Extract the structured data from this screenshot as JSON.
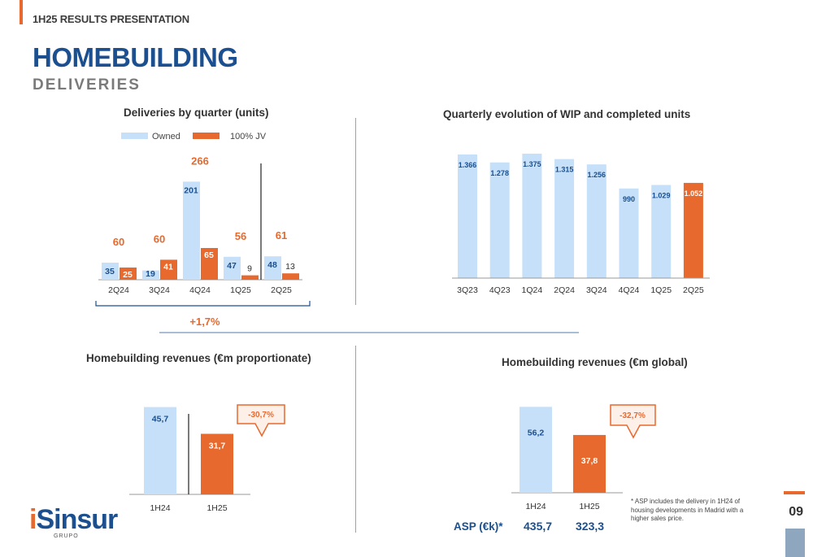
{
  "header": {
    "section_label": "1H25 RESULTS PRESENTATION",
    "title": "HOMEBUILDING",
    "subtitle": "DELIVERIES"
  },
  "colors": {
    "owned": "#c5e0f8",
    "jv": "#e8692e",
    "navy": "#1b4f8f",
    "accent": "#e8692e"
  },
  "chart_data": [
    {
      "type": "bar",
      "title": "Deliveries by quarter (units)",
      "categories": [
        "2Q24",
        "3Q24",
        "4Q24",
        "1Q25",
        "2Q25"
      ],
      "series": [
        {
          "name": "Owned",
          "values": [
            35,
            19,
            201,
            47,
            48
          ]
        },
        {
          "name": "100% JV",
          "values": [
            25,
            41,
            65,
            9,
            13
          ]
        }
      ],
      "totals": [
        60,
        60,
        266,
        56,
        61
      ],
      "legend": "top",
      "annotation": "+1,7%"
    },
    {
      "type": "bar",
      "title": "Quarterly evolution of WIP and completed units",
      "categories": [
        "3Q23",
        "4Q23",
        "1Q24",
        "2Q24",
        "3Q24",
        "4Q24",
        "1Q25",
        "2Q25"
      ],
      "values": [
        1366,
        1278,
        1375,
        1315,
        1256,
        990,
        1029,
        1052
      ],
      "labels": [
        "1.366",
        "1.278",
        "1.375",
        "1.315",
        "1.256",
        "990",
        "1.029",
        "1.052"
      ]
    },
    {
      "type": "bar",
      "title": "Homebuilding revenues (€m proportionate)",
      "categories": [
        "1H24",
        "1H25"
      ],
      "values": [
        45.7,
        31.7
      ],
      "labels": [
        "45,7",
        "31,7"
      ],
      "change": "-30,7%"
    },
    {
      "type": "bar",
      "title": "Homebuilding revenues (€m global)",
      "categories": [
        "1H24",
        "1H25"
      ],
      "values": [
        56.2,
        37.8
      ],
      "labels": [
        "56,2",
        "37,8"
      ],
      "change": "-32,7%"
    }
  ],
  "asp": {
    "label": "ASP (€k)*",
    "values": [
      "435,7",
      "323,3"
    ]
  },
  "footnote": "* ASP includes the delivery in 1H24 of housing developments in Madrid with a higher sales price.",
  "logo": {
    "name_i": "i",
    "name_rest": "Sinsur",
    "sub": "GRUPO"
  },
  "page_number": "09"
}
